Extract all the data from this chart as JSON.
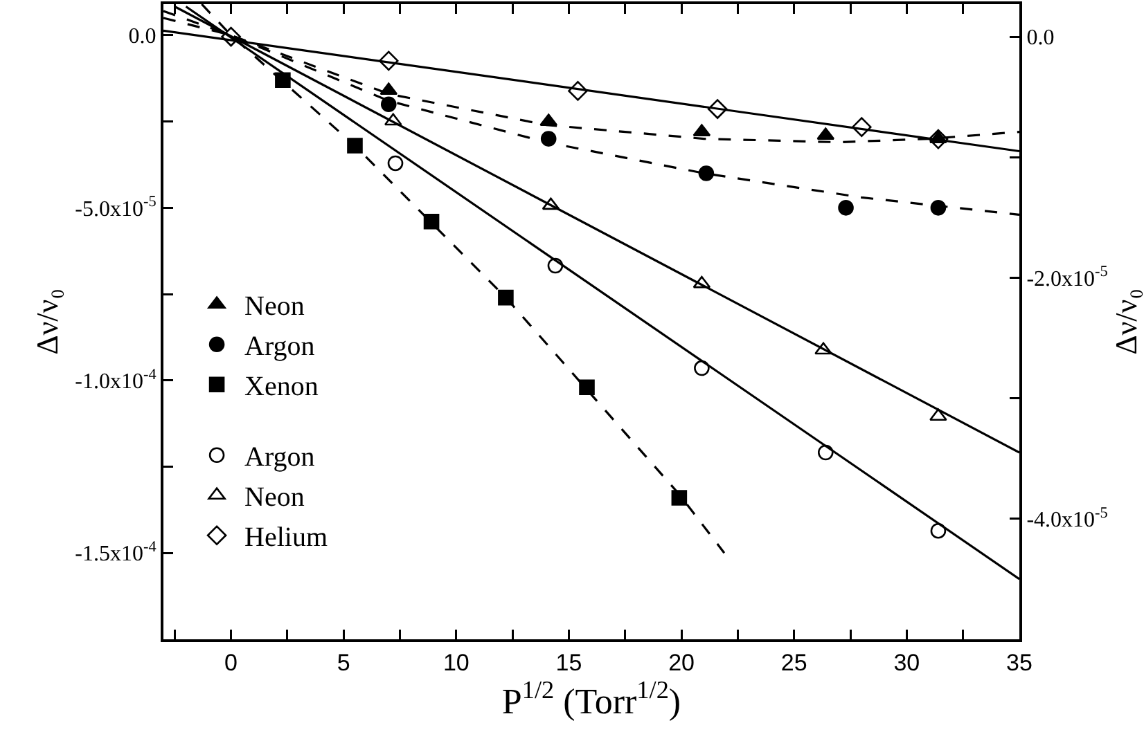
{
  "chart_data": {
    "type": "scatter",
    "xlabel": "P$^{1/2}$ (Torr$^{1/2}$)",
    "ylabel": "Δν/ν₀",
    "y2label": "Δν/ν₀",
    "xlim": [
      -3,
      35
    ],
    "xticks": [
      {
        "value": -2.5,
        "label": null
      },
      0,
      {
        "value": 2.5,
        "label": null
      },
      5,
      {
        "value": 7.5,
        "label": null
      },
      10,
      {
        "value": 12.5,
        "label": null
      },
      15,
      {
        "value": 17.5,
        "label": null
      },
      20,
      {
        "value": 22.5,
        "label": null
      },
      25,
      {
        "value": 27.5,
        "label": null
      },
      30,
      {
        "value": 32.5,
        "label": null
      },
      35
    ],
    "ylim": [
      -0.000175,
      9e-06
    ],
    "yticks": [
      {
        "value": 0,
        "label": "0.0"
      },
      {
        "value": -2.5e-05,
        "label": null
      },
      {
        "value": -5e-05,
        "label": "-5.0x10$^{-5}$"
      },
      {
        "value": -7.5e-05,
        "label": null
      },
      {
        "value": -0.0001,
        "label": "-1.0x10$^{-4}$"
      },
      {
        "value": -0.000125,
        "label": null
      },
      {
        "value": -0.00015,
        "label": "-1.5x10$^{-4}$"
      }
    ],
    "y2lim": [
      -5e-05,
      2.7e-06
    ],
    "y2ticks": [
      {
        "value": 0,
        "label": "0.0"
      },
      {
        "value": -1e-05,
        "label": null
      },
      {
        "value": -2e-05,
        "label": "-2.0x10$^{-5}$"
      },
      {
        "value": -3e-05,
        "label": null
      },
      {
        "value": -4e-05,
        "label": "-4.0x10$^{-5}$"
      }
    ],
    "grid": false,
    "legend": "left",
    "series": [
      {
        "name": "Neon",
        "marker": "triangle",
        "color": "#000000",
        "x": [
          7,
          14.1,
          20.9,
          26.4,
          31.4
        ],
        "values": [
          -1.6e-05,
          -2.5e-05,
          -2.8e-05,
          -2.9e-05,
          -3e-05
        ]
      },
      {
        "name": "Argon",
        "marker": "circle",
        "color": "#000000",
        "x": [
          7,
          14.1,
          21.1,
          27.3,
          31.4
        ],
        "values": [
          -2e-05,
          -3e-05,
          -4e-05,
          -5e-05,
          -5e-05
        ]
      },
      {
        "name": "Xenon",
        "marker": "square",
        "color": "#000000",
        "x": [
          2.3,
          5.5,
          8.9,
          12.2,
          15.8,
          19.9
        ],
        "values": [
          -1.3e-05,
          -3.2e-05,
          -5.4e-05,
          -7.6e-05,
          -0.000102,
          -0.000134
        ]
      },
      {
        "name": "Argon",
        "marker": "circle-open",
        "axis": "y2",
        "color": "#000000",
        "x": [
          7.3,
          14.4,
          20.9,
          26.4,
          31.4
        ],
        "values": [
          -1.05e-05,
          -1.9e-05,
          -2.75e-05,
          -3.45e-05,
          -4.1e-05
        ]
      },
      {
        "name": "Neon",
        "marker": "triangle-open",
        "axis": "y2",
        "color": "#000000",
        "x": [
          7.2,
          14.2,
          20.9,
          26.3,
          31.4
        ],
        "values": [
          -7e-06,
          -1.4e-05,
          -2.05e-05,
          -2.6e-05,
          -3.15e-05
        ]
      },
      {
        "name": "Helium",
        "marker": "diamond-open",
        "axis": "y2",
        "color": "#000000",
        "x": [
          0,
          7,
          15.4,
          21.6,
          28,
          31.4
        ],
        "values": [
          0,
          -2e-06,
          -4.5e-06,
          -6e-06,
          -7.5e-06,
          -8.5e-06
        ]
      },
      {
        "type": "line",
        "line_style": "dashed",
        "color": "#000000",
        "x": [
          -3,
          0,
          7,
          14,
          21,
          27,
          31,
          35
        ],
        "values": [
          7e-06,
          0,
          -1.7e-05,
          -2.6e-05,
          -3e-05,
          -3.1e-05,
          -3e-05,
          -2.8e-05
        ]
      },
      {
        "type": "line",
        "line_style": "dashed",
        "color": "#000000",
        "x": [
          -3,
          0,
          7,
          14,
          21,
          28,
          35
        ],
        "values": [
          5e-06,
          0,
          -1.9e-05,
          -3.1e-05,
          -4e-05,
          -4.7e-05,
          -5.2e-05
        ]
      },
      {
        "type": "line",
        "line_style": "dashed",
        "color": "#000000",
        "x": [
          -1.3,
          0,
          5.5,
          12.2,
          19.9,
          21.9
        ],
        "values": [
          9e-06,
          0,
          -3.2e-05,
          -7.6e-05,
          -0.000133,
          -0.00015
        ]
      },
      {
        "type": "line",
        "line_style": "solid",
        "axis": "y2",
        "color": "#000000",
        "x": [
          -2,
          35
        ],
        "values": [
          2.5e-06,
          -4.5e-05
        ]
      },
      {
        "type": "line",
        "line_style": "solid",
        "axis": "y2",
        "color": "#000000",
        "x": [
          -2.5,
          35
        ],
        "values": [
          2.5e-06,
          -3.45e-05
        ]
      },
      {
        "type": "line",
        "line_style": "solid",
        "axis": "y2",
        "color": "#000000",
        "x": [
          -3,
          35
        ],
        "values": [
          5e-07,
          -9.5e-06
        ]
      }
    ]
  }
}
